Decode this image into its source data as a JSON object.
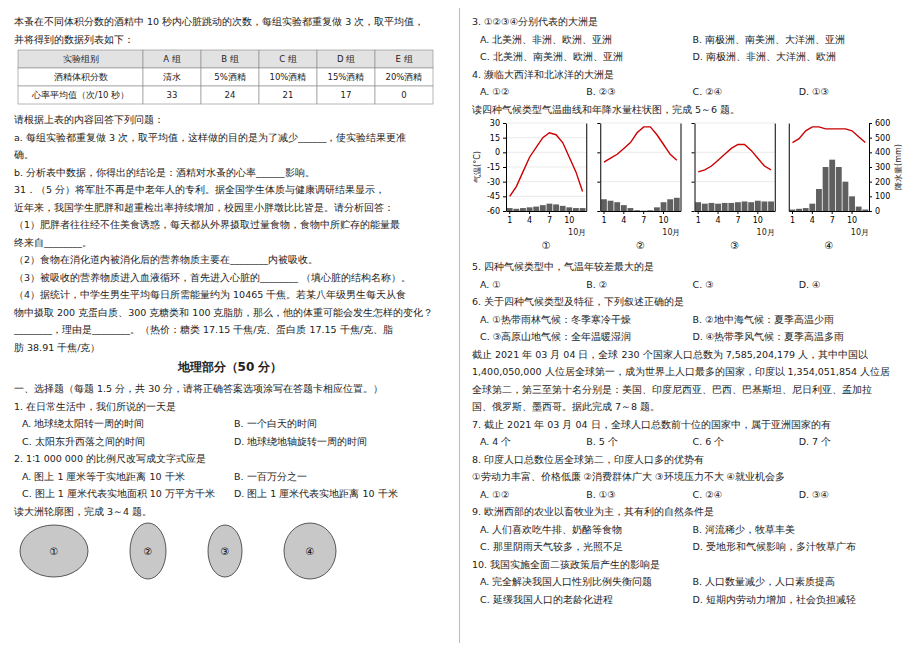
{
  "page": {
    "left_column": [
      "本蚤在不同体积分数的酒精中 10 秒内心脏跳动的次数，每组实验都重复做 3 次，取平均值，",
      "并将得到的数据列表如下：",
      {
        "table": {
          "columns": [
            "实验组别",
            "A 组",
            "B 组",
            "C 组",
            "D 组",
            "E 组"
          ],
          "rows": [
            [
              "酒精体积分数",
              "清水",
              "5%酒精",
              "10%酒精",
              "15%酒精",
              "20%酒精"
            ],
            [
              "心率平均值（次/10 秒）",
              "33",
              "24",
              "21",
              "17",
              "0"
            ]
          ]
        }
      },
      "请根据上表的内容回答下列问题：",
      "a. 每组实验都重复做 3 次，取平均值，这样做的目的是为了减少______，使实验结果更准",
      "确。",
      "b. 分析表中数据，你得出的结论是：酒精对水蚤的心率______影响。",
      "31．（5 分）将军肚不再是中老年人的专利。据全国学生体质与健康调研结果显示，",
      "近年来，我国学生肥胖和超重检出率持续增加，校园里小胖墩比比皆是。请分析回答：",
      "（1）肥胖者往往经不住美食诱惑，每天都从外界摄取过量食物，食物中所贮存的能量最",
      "终来自________。",
      "（2）食物在消化道内被消化后的营养物质主要在________内被吸收。",
      "（3）被吸收的营养物质进入血液循环，首先进入心脏的________ （填心脏的结构名称）。",
      "（4）据统计，中学生男生平均每日所需能量约为 10465 千焦。若某八年级男生每天从食",
      "物中摄取 200 克蛋白质、300 克糖类和 100 克脂肪，那么，他的体重可能会发生怎样的变化？",
      "________，理由是________。（热价：糖类 17.15 千焦/克、蛋白质 17.15 千焦/克、脂",
      "肪 38.91 千焦/克）",
      {
        "heading": "地理部分（50 分）"
      },
      "一、选择题（每题 1.5 分，共 30 分，请将正确答案选项涂写在答题卡相应位置。）",
      "1. 在日常生活中，我们所说的一天是",
      [
        "A. 地球绕太阳转一周的时间",
        "B. 一个白天的时间"
      ],
      [
        "C. 太阳东升西落之间的时间",
        "D. 地球绕地轴旋转一周的时间"
      ],
      "2. 1∶1 000 000 的比例尺改写成文字式应是",
      [
        "A. 图上 1 厘米等于实地距离 10 千米",
        "B. 一百万分之一"
      ],
      [
        "C. 图上 1 厘米代表实地面积 10 万平方千米",
        "D. 图上 1 厘米代表实地距离 10 千米"
      ],
      "读大洲轮廓图，完成 3～4 题。",
      {
        "map_labels": [
          "①",
          "②",
          "③",
          "④"
        ]
      }
    ],
    "right_column": [
      "3. ①②③④分别代表的大洲是",
      [
        "A. 北美洲、非洲、欧洲、亚洲",
        "B. 南极洲、南美洲、大洋洲、亚洲"
      ],
      [
        "C. 北美洲、南美洲、欧洲、亚洲",
        "D. 南极洲、非洲、大洋洲、欧洲"
      ],
      "4. 濒临大西洋和北冰洋的大洲是",
      [
        "A. ①②",
        "B. ②③",
        "C. ②④",
        "D. ①③"
      ],
      "读四种气候类型气温曲线和年降水量柱状图，完成 5～6 题。"
    ],
    "right_column_lower": [
      "5. 四种气候类型中，气温年较差最大的是",
      [
        "A. ①",
        "B. ②",
        "C. ③",
        "D. ④"
      ],
      "6. 关于四种气候类型及特征，下列叙述正确的是",
      [
        "A. ①热带雨林气候：冬季寒冷干燥",
        "B. ②地中海气候：夏季高温少雨"
      ],
      [
        "C. ③高原山地气候：全年温暖湿润",
        "D. ④热带季风气候：夏季高温多雨"
      ],
      "截止 2021 年 03 月 04 日，全球 230 个国家人口总数为 7,585,204,179 人，其中中国以",
      "1,400,050,000 人位居全球第一，成为世界上人口最多的国家，印度以 1,354,051,854 人位居",
      "全球第二，第三至第十名分别是：美国、印度尼西亚、巴西、巴基斯坦、尼日利亚、孟加拉",
      "国、俄罗斯、墨西哥。据此完成 7～8 题。",
      "7. 截止 2021 年 03 月 04 日，全球人口总数前十位的国家中，属于亚洲国家的有",
      [
        "A. 4 个",
        "B. 5 个",
        "C. 6 个",
        "D. 7 个"
      ],
      "8. 印度人口总数位居全球第二，印度人口多的优势有",
      "①劳动力丰富、价格低廉 ②消费群体广大 ③环境压力不大 ④就业机会多",
      [
        "A. ①②",
        "B. ①③",
        "C. ②④",
        "D. ③④"
      ],
      "9. 欧洲西部的农业以畜牧业为主，其有利的自然条件是",
      [
        "A. 人们喜欢吃牛排、奶酪等食物",
        "B. 河流稀少，牧草丰美"
      ],
      [
        "C. 那里阴雨天气较多，光照不足",
        "D. 受地形和气候影响，多汁牧草广布"
      ],
      "10. 我国实施全面二孩政策后产生的影响是",
      [
        "A. 完全解决我国人口性别比例失衡问题",
        "B. 人口数量减少，人口素质提高"
      ],
      [
        "C. 延缓我国人口的老龄化进程",
        "D. 短期内劳动力增加，社会负担减轻"
      ]
    ]
  },
  "chart_data": [
    {
      "type": "bar",
      "title": "①",
      "categories": [
        "1",
        null,
        null,
        "4",
        null,
        null,
        "7",
        null,
        null,
        "10",
        null,
        null
      ],
      "series": [
        {
          "type": "bar",
          "axis": "y2",
          "color": "#444444",
          "values": [
            20,
            15,
            20,
            25,
            30,
            40,
            50,
            45,
            35,
            25,
            20,
            20
          ]
        },
        {
          "type": "line",
          "color": "#cc0000",
          "values": [
            -45,
            -35,
            -20,
            -5,
            5,
            15,
            20,
            18,
            10,
            -5,
            -20,
            -40
          ]
        }
      ],
      "ylim": [
        -60,
        30
      ],
      "yticks": [
        -60,
        -45,
        -30,
        -15,
        0,
        15,
        30
      ],
      "ylabel": "气温(°C)",
      "y2lim": [
        0,
        600
      ],
      "xlabel": "10月",
      "grid": true
    },
    {
      "type": "bar",
      "title": "②",
      "categories": [
        "1",
        null,
        null,
        "4",
        null,
        null,
        "7",
        null,
        null,
        "10",
        null,
        null
      ],
      "series": [
        {
          "type": "bar",
          "axis": "y2",
          "color": "#444444",
          "values": [
            80,
            70,
            60,
            40,
            20,
            5,
            2,
            5,
            25,
            60,
            80,
            90
          ]
        },
        {
          "type": "line",
          "color": "#cc0000",
          "values": [
            10,
            12,
            14,
            17,
            20,
            25,
            28,
            28,
            24,
            19,
            14,
            11
          ]
        }
      ],
      "ylim": [
        -15,
        30
      ],
      "yticks": [
        -15,
        0,
        15,
        30
      ],
      "y2lim": [
        0,
        600
      ],
      "xlabel": "10月",
      "tick_labels": "x",
      "grid": true
    },
    {
      "type": "bar",
      "title": "③",
      "categories": [
        "1",
        null,
        null,
        "4",
        null,
        null,
        "7",
        null,
        null,
        "10",
        null,
        null
      ],
      "series": [
        {
          "type": "bar",
          "axis": "y2",
          "color": "#444444",
          "values": [
            60,
            50,
            55,
            50,
            55,
            55,
            60,
            65,
            60,
            70,
            65,
            65
          ]
        },
        {
          "type": "line",
          "color": "#cc0000",
          "values": [
            5,
            6,
            8,
            11,
            14,
            17,
            19,
            19,
            16,
            12,
            8,
            6
          ]
        }
      ],
      "ylim": [
        -15,
        30
      ],
      "yticks": [
        -15,
        0,
        15,
        30
      ],
      "y2lim": [
        0,
        600
      ],
      "xlabel": "10月",
      "tick_labels": "x",
      "grid": true
    },
    {
      "type": "bar",
      "title": "④",
      "categories": [
        "1",
        null,
        null,
        "4",
        null,
        null,
        "7",
        null,
        null,
        "10",
        null,
        null
      ],
      "series": [
        {
          "type": "bar",
          "axis": "y2",
          "color": "#444444",
          "values": [
            10,
            15,
            20,
            50,
            150,
            300,
            350,
            300,
            200,
            100,
            30,
            10
          ]
        },
        {
          "type": "line",
          "color": "#cc0000",
          "values": [
            20,
            22,
            26,
            28,
            28,
            27,
            27,
            27,
            27,
            26,
            23,
            20
          ]
        }
      ],
      "ylim": [
        -15,
        30
      ],
      "y2lim": [
        0,
        600
      ],
      "y2ticks": [
        0,
        100,
        200,
        300,
        400,
        500,
        600
      ],
      "y2label": "降水量(mm)",
      "xlabel": "10月",
      "grid": true
    }
  ]
}
